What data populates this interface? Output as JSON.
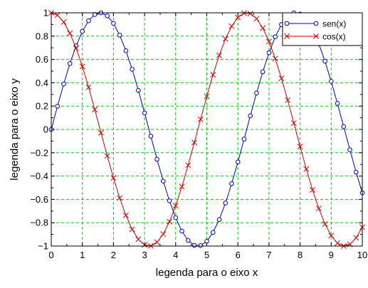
{
  "chart_data": {
    "type": "line",
    "title": "",
    "xlabel": "legenda para o eixo x",
    "ylabel": "legenda para o eixo y",
    "xlim": [
      0,
      10
    ],
    "ylim": [
      -1,
      1
    ],
    "grid": true,
    "grid_color": "#00cc00",
    "legend_position": "top-right",
    "x_ticks": [
      "0",
      "1",
      "2",
      "3",
      "4",
      "5",
      "6",
      "7",
      "8",
      "9",
      "10"
    ],
    "y_ticks": [
      "−1",
      "−0.8",
      "−0.6",
      "−0.4",
      "−0.2",
      "0",
      "0.2",
      "0.4",
      "0.6",
      "0.8",
      "1"
    ],
    "x": [
      0,
      0.2,
      0.4,
      0.6,
      0.8,
      1.0,
      1.2,
      1.4,
      1.6,
      1.8,
      2.0,
      2.2,
      2.4,
      2.6,
      2.8,
      3.0,
      3.2,
      3.4,
      3.6,
      3.8,
      4.0,
      4.2,
      4.4,
      4.6,
      4.8,
      5.0,
      5.2,
      5.4,
      5.6,
      5.8,
      6.0,
      6.2,
      6.4,
      6.6,
      6.8,
      7.0,
      7.2,
      7.4,
      7.6,
      7.8,
      8.0,
      8.2,
      8.4,
      8.6,
      8.8,
      9.0,
      9.2,
      9.4,
      9.6,
      9.8,
      10.0
    ],
    "series": [
      {
        "name": "sen(x)",
        "color": "#0000cc",
        "marker": "circle",
        "values": [
          0.0,
          0.199,
          0.389,
          0.565,
          0.717,
          0.841,
          0.932,
          0.985,
          1.0,
          0.974,
          0.909,
          0.808,
          0.675,
          0.516,
          0.335,
          0.141,
          -0.058,
          -0.256,
          -0.443,
          -0.612,
          -0.757,
          -0.872,
          -0.952,
          -0.994,
          -0.996,
          -0.959,
          -0.883,
          -0.773,
          -0.631,
          -0.465,
          -0.279,
          -0.083,
          0.117,
          0.312,
          0.494,
          0.657,
          0.794,
          0.899,
          0.968,
          0.999,
          0.989,
          0.941,
          0.855,
          0.734,
          0.585,
          0.412,
          0.223,
          0.025,
          -0.174,
          -0.366,
          -0.544
        ]
      },
      {
        "name": "cos(x)",
        "color": "#cc0000",
        "marker": "x",
        "values": [
          1.0,
          0.98,
          0.921,
          0.825,
          0.697,
          0.54,
          0.362,
          0.17,
          -0.029,
          -0.227,
          -0.416,
          -0.589,
          -0.737,
          -0.857,
          -0.942,
          -0.99,
          -0.998,
          -0.967,
          -0.897,
          -0.791,
          -0.654,
          -0.49,
          -0.307,
          -0.112,
          0.087,
          0.284,
          0.469,
          0.635,
          0.776,
          0.886,
          0.96,
          0.997,
          0.993,
          0.95,
          0.869,
          0.754,
          0.608,
          0.438,
          0.251,
          0.054,
          -0.146,
          -0.34,
          -0.519,
          -0.677,
          -0.811,
          -0.911,
          -0.975,
          -1.0,
          -0.985,
          -0.93,
          -0.839
        ]
      }
    ]
  }
}
